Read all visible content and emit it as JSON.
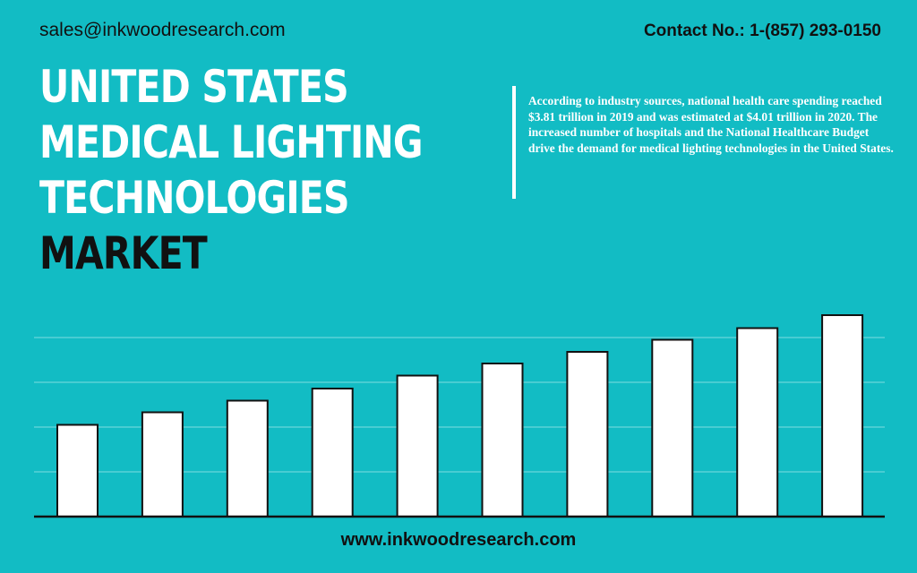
{
  "header": {
    "email": "sales@inkwoodresearch.com",
    "contact": "Contact No.: 1-(857) 293-0150"
  },
  "title": {
    "line1": "UNITED STATES",
    "line2": "MEDICAL LIGHTING",
    "line3": "TECHNOLOGIES",
    "line4": "MARKET"
  },
  "description": "According to industry sources, national health care spending reached $3.81 trillion in 2019 and was estimated at $4.01 trillion in 2020. The increased number of hospitals and the National Healthcare Budget drive the demand for medical lighting technologies in the United States.",
  "footer": {
    "website": "www.inkwoodresearch.com"
  },
  "colors": {
    "background": "#12bcc4",
    "bar_fill": "#ffffff",
    "bar_stroke": "#111111",
    "gridline": "#7fdce0",
    "axis": "#111111"
  },
  "chart_data": {
    "type": "bar",
    "values": [
      20.5,
      23.3,
      25.9,
      28.6,
      31.5,
      34.2,
      36.8,
      39.5,
      42.1,
      45.0
    ],
    "ylim": [
      0,
      50
    ],
    "grid": true
  }
}
